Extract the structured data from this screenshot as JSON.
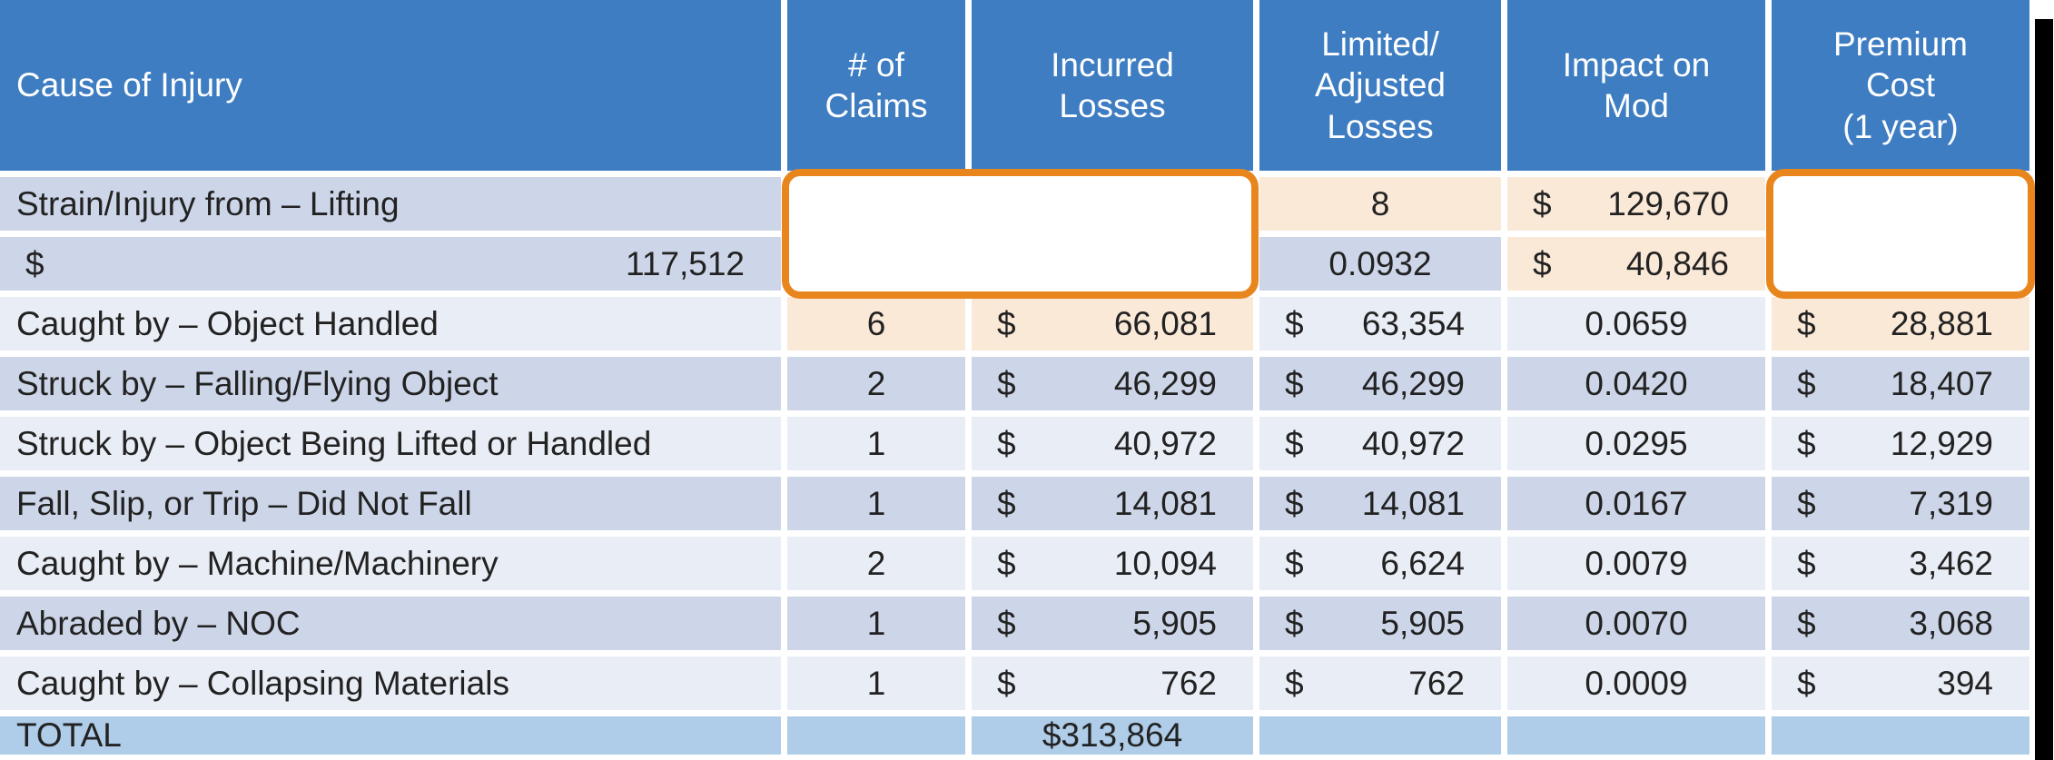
{
  "header": {
    "cause": "Cause of Injury",
    "claims": "# of\nClaims",
    "incurred": "Incurred\nLosses",
    "limited": "Limited/\nAdjusted\nLosses",
    "mod": "Impact on\nMod",
    "premium": "Premium\nCost\n(1 year)"
  },
  "currency_symbol": "$",
  "rows": [
    {
      "cause": "Strain/Injury from – Lifting",
      "claims": "8",
      "incurred": "129,670",
      "limited": "117,512",
      "mod": "0.0932",
      "premium": "40,846",
      "highlighted": true
    },
    {
      "cause": "Caught by – Object Handled",
      "claims": "6",
      "incurred": "66,081",
      "limited": "63,354",
      "mod": "0.0659",
      "premium": "28,881",
      "highlighted": true
    },
    {
      "cause": "Struck by – Falling/Flying Object",
      "claims": "2",
      "incurred": "46,299",
      "limited": "46,299",
      "mod": "0.0420",
      "premium": "18,407",
      "highlighted": false
    },
    {
      "cause": "Struck by – Object Being Lifted or Handled",
      "claims": "1",
      "incurred": "40,972",
      "limited": "40,972",
      "mod": "0.0295",
      "premium": "12,929",
      "highlighted": false
    },
    {
      "cause": "Fall, Slip, or Trip – Did Not Fall",
      "claims": "1",
      "incurred": "14,081",
      "limited": "14,081",
      "mod": "0.0167",
      "premium": "7,319",
      "highlighted": false
    },
    {
      "cause": "Caught by – Machine/Machinery",
      "claims": "2",
      "incurred": "10,094",
      "limited": "6,624",
      "mod": "0.0079",
      "premium": "3,462",
      "highlighted": false
    },
    {
      "cause": "Abraded by – NOC",
      "claims": "1",
      "incurred": "5,905",
      "limited": "5,905",
      "mod": "0.0070",
      "premium": "3,068",
      "highlighted": false
    },
    {
      "cause": "Caught by – Collapsing Materials",
      "claims": "1",
      "incurred": "762",
      "limited": "762",
      "mod": "0.0009",
      "premium": "394",
      "highlighted": false
    }
  ],
  "total": {
    "label": "TOTAL",
    "incurred": "$313,864"
  },
  "highlights": {
    "description": "Orange rounded boxes emphasize rows 1-2 in the claims/incurred columns and rows 1-2 in the premium cost column",
    "border_color": "#E8861D",
    "fill_color": "#FBE9D8"
  },
  "colors": {
    "header_blue": "#3E7DC2",
    "band_dark": "#CDD6E8",
    "band_light": "#E9EDF5",
    "total_row": "#AFCCE8",
    "frame_black": "#000000",
    "header_text": "#FFFFFF",
    "body_text": "#222222"
  }
}
